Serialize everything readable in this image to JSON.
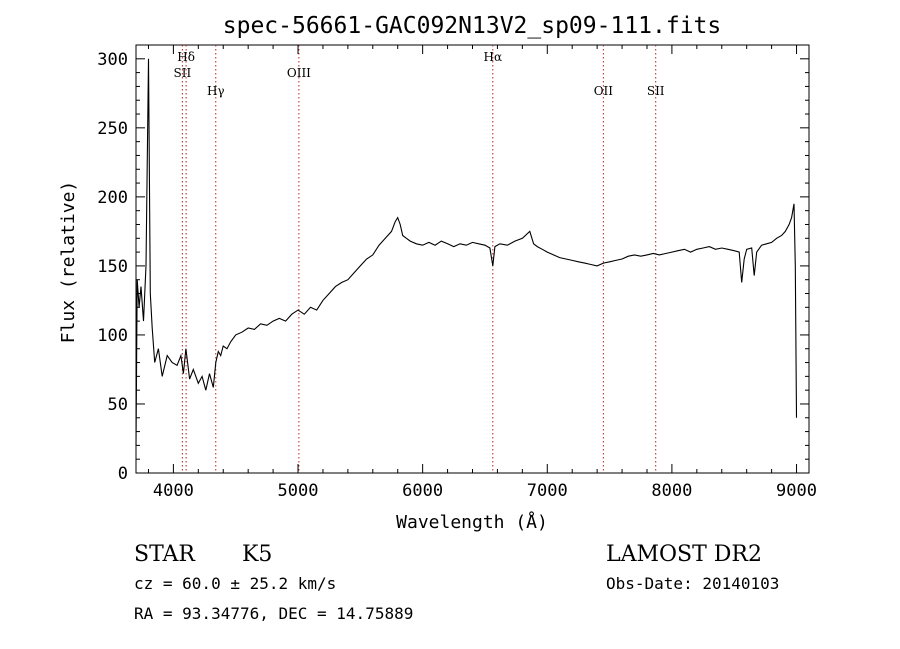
{
  "chart_data": {
    "type": "line",
    "title": "spec-56661-GAC092N13V2_sp09-111.fits",
    "xlabel": "Wavelength (Å)",
    "ylabel": "Flux (relative)",
    "xlim": [
      3700,
      9100
    ],
    "ylim": [
      0,
      310
    ],
    "x_ticks": [
      4000,
      5000,
      6000,
      7000,
      8000,
      9000
    ],
    "y_ticks": [
      0,
      50,
      100,
      150,
      200,
      250,
      300
    ],
    "grid": false,
    "line_color": "#000000",
    "series": [
      {
        "x": [
          3700,
          3710,
          3725,
          3740,
          3760,
          3780,
          3800,
          3815,
          3830,
          3850,
          3880,
          3910,
          3950,
          3990,
          4030,
          4060,
          4080,
          4100,
          4130,
          4160,
          4200,
          4230,
          4260,
          4290,
          4320,
          4340,
          4360,
          4380,
          4400,
          4430,
          4460,
          4500,
          4550,
          4600,
          4650,
          4700,
          4750,
          4800,
          4850,
          4900,
          4950,
          5000,
          5050,
          5100,
          5150,
          5200,
          5250,
          5300,
          5350,
          5400,
          5450,
          5500,
          5550,
          5600,
          5650,
          5700,
          5750,
          5780,
          5800,
          5820,
          5840,
          5870,
          5900,
          5950,
          6000,
          6050,
          6100,
          6150,
          6200,
          6250,
          6300,
          6350,
          6400,
          6450,
          6500,
          6540,
          6563,
          6580,
          6620,
          6680,
          6740,
          6800,
          6860,
          6890,
          6920,
          6960,
          7000,
          7050,
          7100,
          7150,
          7200,
          7250,
          7300,
          7350,
          7400,
          7450,
          7500,
          7550,
          7600,
          7650,
          7700,
          7750,
          7800,
          7850,
          7900,
          7950,
          8000,
          8050,
          8100,
          8150,
          8200,
          8250,
          8300,
          8350,
          8400,
          8450,
          8500,
          8540,
          8560,
          8580,
          8600,
          8640,
          8660,
          8680,
          8720,
          8760,
          8800,
          8840,
          8880,
          8910,
          8940,
          8960,
          8980,
          8990,
          9000
        ],
        "values": [
          20,
          140,
          120,
          135,
          110,
          150,
          300,
          130,
          105,
          80,
          90,
          70,
          85,
          80,
          78,
          85,
          72,
          90,
          68,
          75,
          65,
          70,
          60,
          72,
          62,
          80,
          88,
          85,
          92,
          90,
          95,
          100,
          102,
          105,
          104,
          108,
          107,
          110,
          112,
          110,
          115,
          118,
          115,
          120,
          118,
          125,
          130,
          135,
          138,
          140,
          145,
          150,
          155,
          158,
          165,
          170,
          175,
          182,
          185,
          180,
          172,
          170,
          168,
          166,
          165,
          167,
          165,
          168,
          166,
          164,
          166,
          165,
          167,
          166,
          165,
          163,
          150,
          164,
          166,
          165,
          168,
          170,
          175,
          166,
          164,
          162,
          160,
          158,
          156,
          155,
          154,
          153,
          152,
          151,
          150,
          152,
          153,
          154,
          155,
          157,
          158,
          157,
          158,
          159,
          158,
          159,
          160,
          161,
          162,
          160,
          162,
          163,
          164,
          162,
          163,
          162,
          161,
          160,
          138,
          155,
          162,
          163,
          143,
          160,
          165,
          166,
          167,
          170,
          172,
          175,
          180,
          185,
          195,
          150,
          40
        ]
      }
    ],
    "lines": [
      {
        "label": "Hδ",
        "x": 4102,
        "row": 1
      },
      {
        "label": "SII",
        "x": 4072,
        "row": 2
      },
      {
        "label": "Hγ",
        "x": 4340,
        "row": 3
      },
      {
        "label": "OIII",
        "x": 5007,
        "row": 2
      },
      {
        "label": "Hα",
        "x": 6563,
        "row": 1
      },
      {
        "label": "OII",
        "x": 7450,
        "row": 3
      },
      {
        "label": "SII",
        "x": 7870,
        "row": 3
      }
    ],
    "line_color_markers": "#b22222"
  },
  "info": {
    "class": "STAR",
    "subclass": "K5",
    "cz": "cz = 60.0 ± 25.2 km/s",
    "coords": "RA =  93.34776, DEC =  14.75889",
    "survey": "LAMOST DR2",
    "obs_date": "Obs-Date: 20140103"
  }
}
